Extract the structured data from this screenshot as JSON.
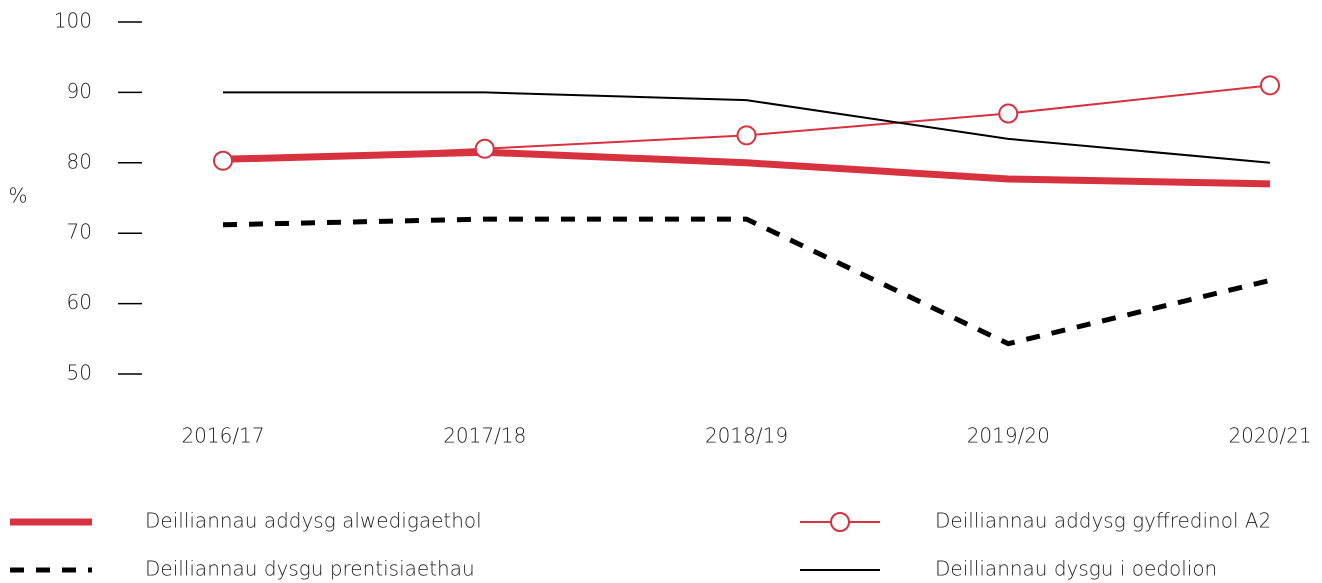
{
  "chart_data": {
    "type": "line",
    "ylabel": "%",
    "categories": [
      "2016/17",
      "2017/18",
      "2018/19",
      "2019/20",
      "2020/21"
    ],
    "ylim": [
      50,
      100
    ],
    "yticks": [
      50,
      60,
      70,
      80,
      90,
      100
    ],
    "series": [
      {
        "name": "Deilliannau addysg alwedigaethol",
        "color": "#d6323f",
        "linewidth": 7,
        "linestyle": "solid",
        "values": [
          80.5,
          81.5,
          80,
          77.7,
          77
        ]
      },
      {
        "name": "Deilliannau addysg gyffredinol A2",
        "color": "#d6323f",
        "linewidth": 2,
        "linestyle": "solid",
        "marker": "circle",
        "values": [
          80.3,
          82,
          83.9,
          87,
          91
        ]
      },
      {
        "name": "Deilliannau dysgu prentisiaethau",
        "color": "#000000",
        "linewidth": 5,
        "linestyle": "dashed",
        "values": [
          71.2,
          72,
          72,
          54.3,
          63.3
        ]
      },
      {
        "name": "Deilliannau dysgu i oedolion",
        "color": "#000000",
        "linewidth": 2,
        "linestyle": "solid",
        "values": [
          90,
          90,
          88.9,
          83.4,
          80
        ]
      }
    ]
  }
}
